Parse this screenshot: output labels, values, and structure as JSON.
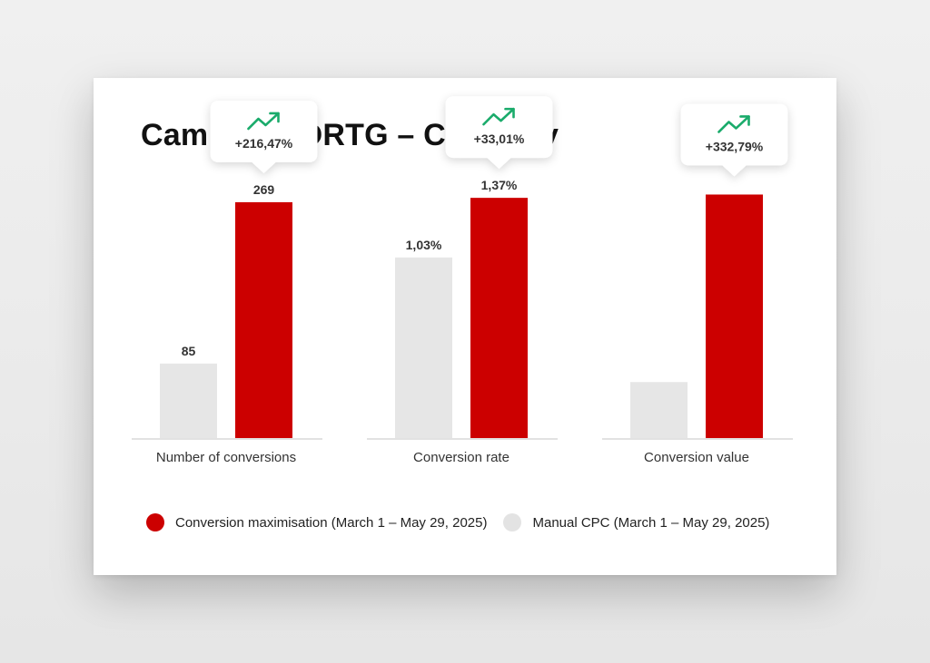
{
  "colors": {
    "accent": "#cc0000",
    "baseline": "#e6e6e6",
    "trend": "#1aab6b",
    "axis": "#d9d9d9"
  },
  "chart_data": {
    "type": "bar",
    "title": "Campaign DRTG – Category",
    "legend": {
      "position": "bottom-left"
    },
    "series": [
      {
        "name": "Manual CPC (March 1 – May 29, 2025)",
        "color": "#e6e6e6"
      },
      {
        "name": "Conversion maximisation (March 1 – May 29, 2025)",
        "color": "#cc0000"
      }
    ],
    "groups": [
      {
        "category": "Number of conversions",
        "values": [
          85,
          269
        ],
        "labels": [
          "85",
          "269"
        ],
        "change": "+216,47%",
        "ylim": [
          0,
          300
        ]
      },
      {
        "category": "Conversion rate",
        "values": [
          1.03,
          1.37
        ],
        "labels": [
          "1,03%",
          "1,37%"
        ],
        "change": "+33,01%",
        "ylim": [
          0,
          1.5
        ]
      },
      {
        "category": "Conversion value",
        "values": [
          0.23,
          1.0
        ],
        "labels": [
          "",
          ""
        ],
        "change": "+332,79%",
        "ylim": [
          0,
          1.08
        ]
      }
    ]
  }
}
